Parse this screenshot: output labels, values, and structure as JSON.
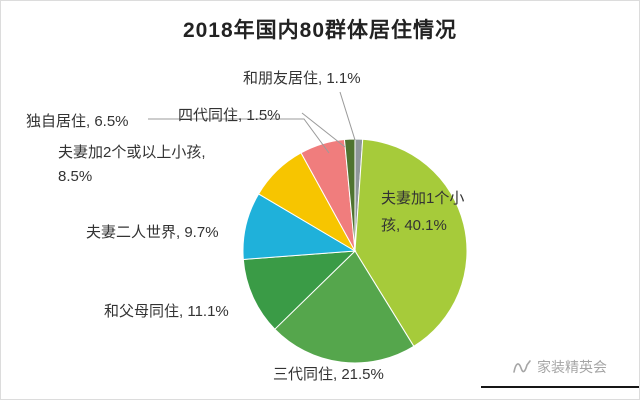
{
  "chart_data": {
    "type": "pie",
    "title": "2018年国内80群体居住情况",
    "unit": "%",
    "start_angle_deg": -90,
    "direction": "clockwise",
    "legend_position": "none",
    "labels_format": "{name}, {value}%",
    "slices": [
      {
        "id": "with-friends",
        "name": "和朋友居住",
        "value": 1.1,
        "color": "#8e969a"
      },
      {
        "id": "couple-one-child",
        "name": "夫妻加1个小孩",
        "value": 40.1,
        "color": "#a6cb3a"
      },
      {
        "id": "three-generations",
        "name": "三代同住",
        "value": 21.5,
        "color": "#55a64c"
      },
      {
        "id": "with-parents",
        "name": "和父母同住",
        "value": 11.1,
        "color": "#3a9b46"
      },
      {
        "id": "couple-only",
        "name": "夫妻二人世界",
        "value": 9.7,
        "color": "#1fb1da"
      },
      {
        "id": "couple-two-plus",
        "name": "夫妻加2个或以上小孩",
        "value": 8.5,
        "color": "#f7c500"
      },
      {
        "id": "living-alone",
        "name": "独自居住",
        "value": 6.5,
        "color": "#f07d7d"
      },
      {
        "id": "four-generations",
        "name": "四代同住",
        "value": 1.5,
        "color": "#4f7330"
      }
    ]
  },
  "watermark": {
    "text": "家装精英会"
  }
}
